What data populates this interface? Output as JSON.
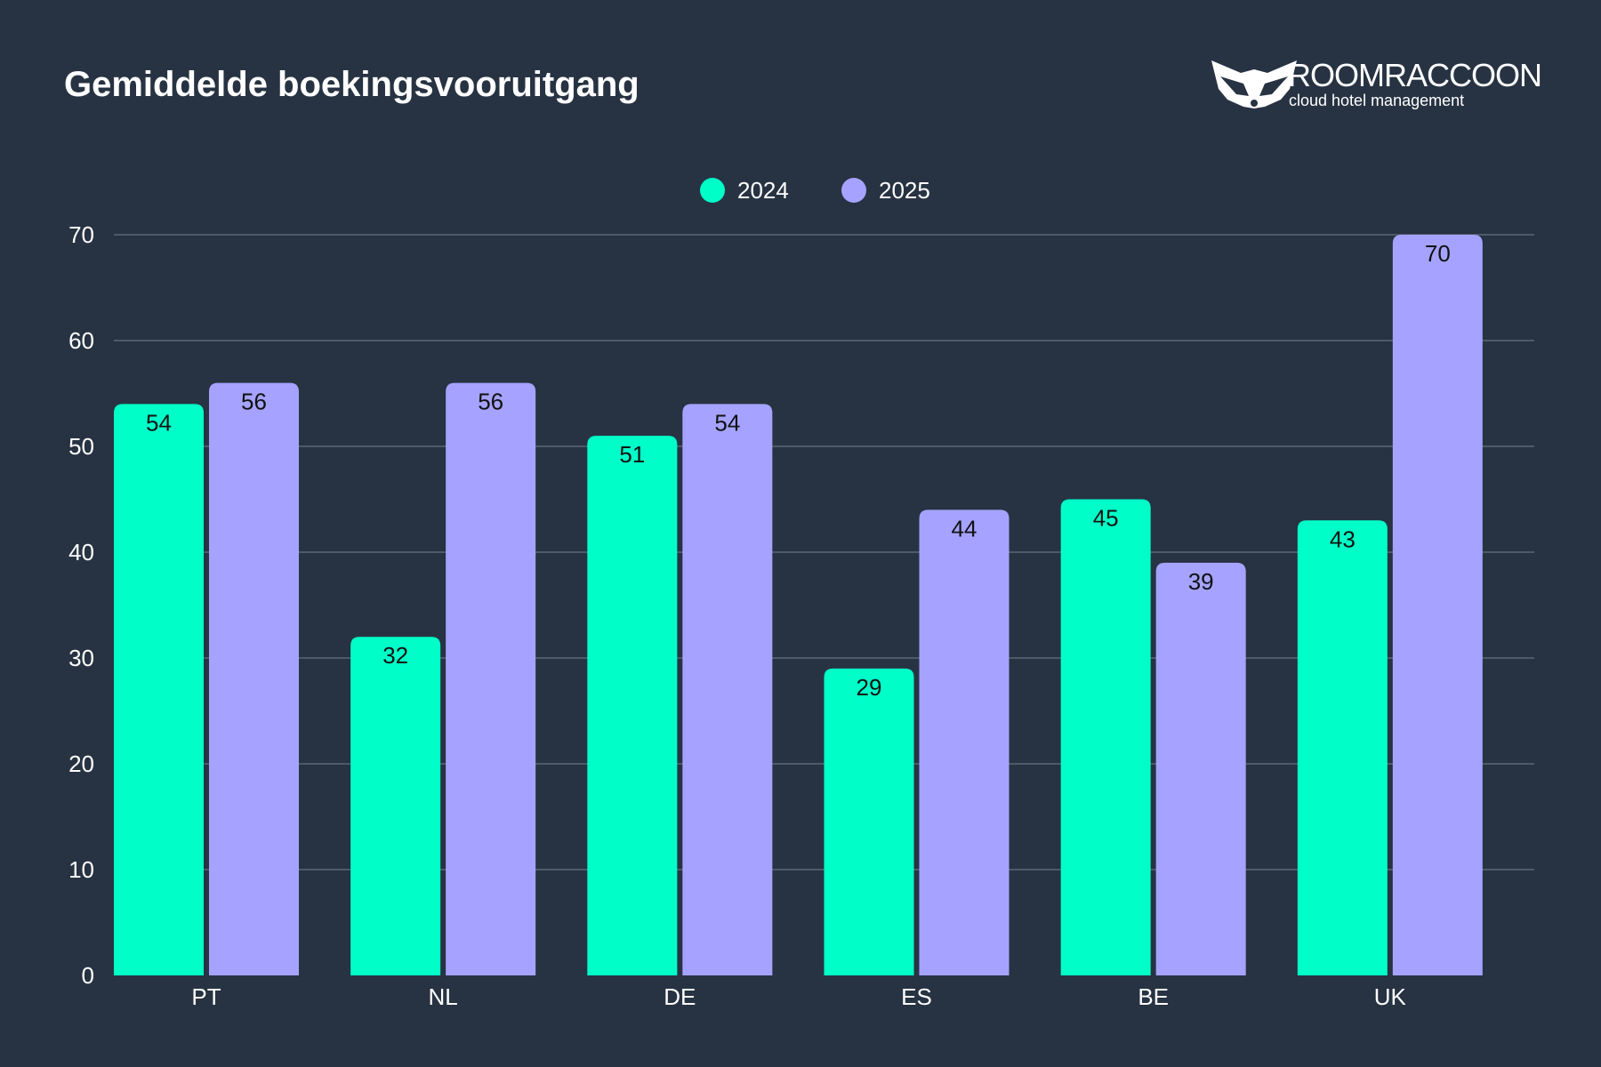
{
  "header": {
    "title": "Gemiddelde boekingsvooruitgang",
    "logo": {
      "name": "ROOMRACCOON",
      "tagline": "cloud hotel management"
    }
  },
  "chart_data": {
    "type": "bar",
    "title": "Gemiddelde boekingsvooruitgang",
    "xlabel": "",
    "ylabel": "",
    "categories": [
      "PT",
      "NL",
      "DE",
      "ES",
      "BE",
      "UK"
    ],
    "series": [
      {
        "name": "2024",
        "color": "#00FFC8",
        "values": [
          54,
          32,
          51,
          29,
          45,
          43
        ]
      },
      {
        "name": "2025",
        "color": "#A5A3FF",
        "values": [
          56,
          56,
          54,
          44,
          39,
          70
        ]
      }
    ],
    "ylim": [
      0,
      70
    ],
    "yticks": [
      0,
      10,
      20,
      30,
      40,
      50,
      60,
      70
    ],
    "grid": true,
    "legend": "top-center",
    "data_labels": true
  },
  "colors": {
    "background": "#273342",
    "grid": "#4E5A68",
    "text": "#FFFFFF",
    "label": "#111111"
  }
}
